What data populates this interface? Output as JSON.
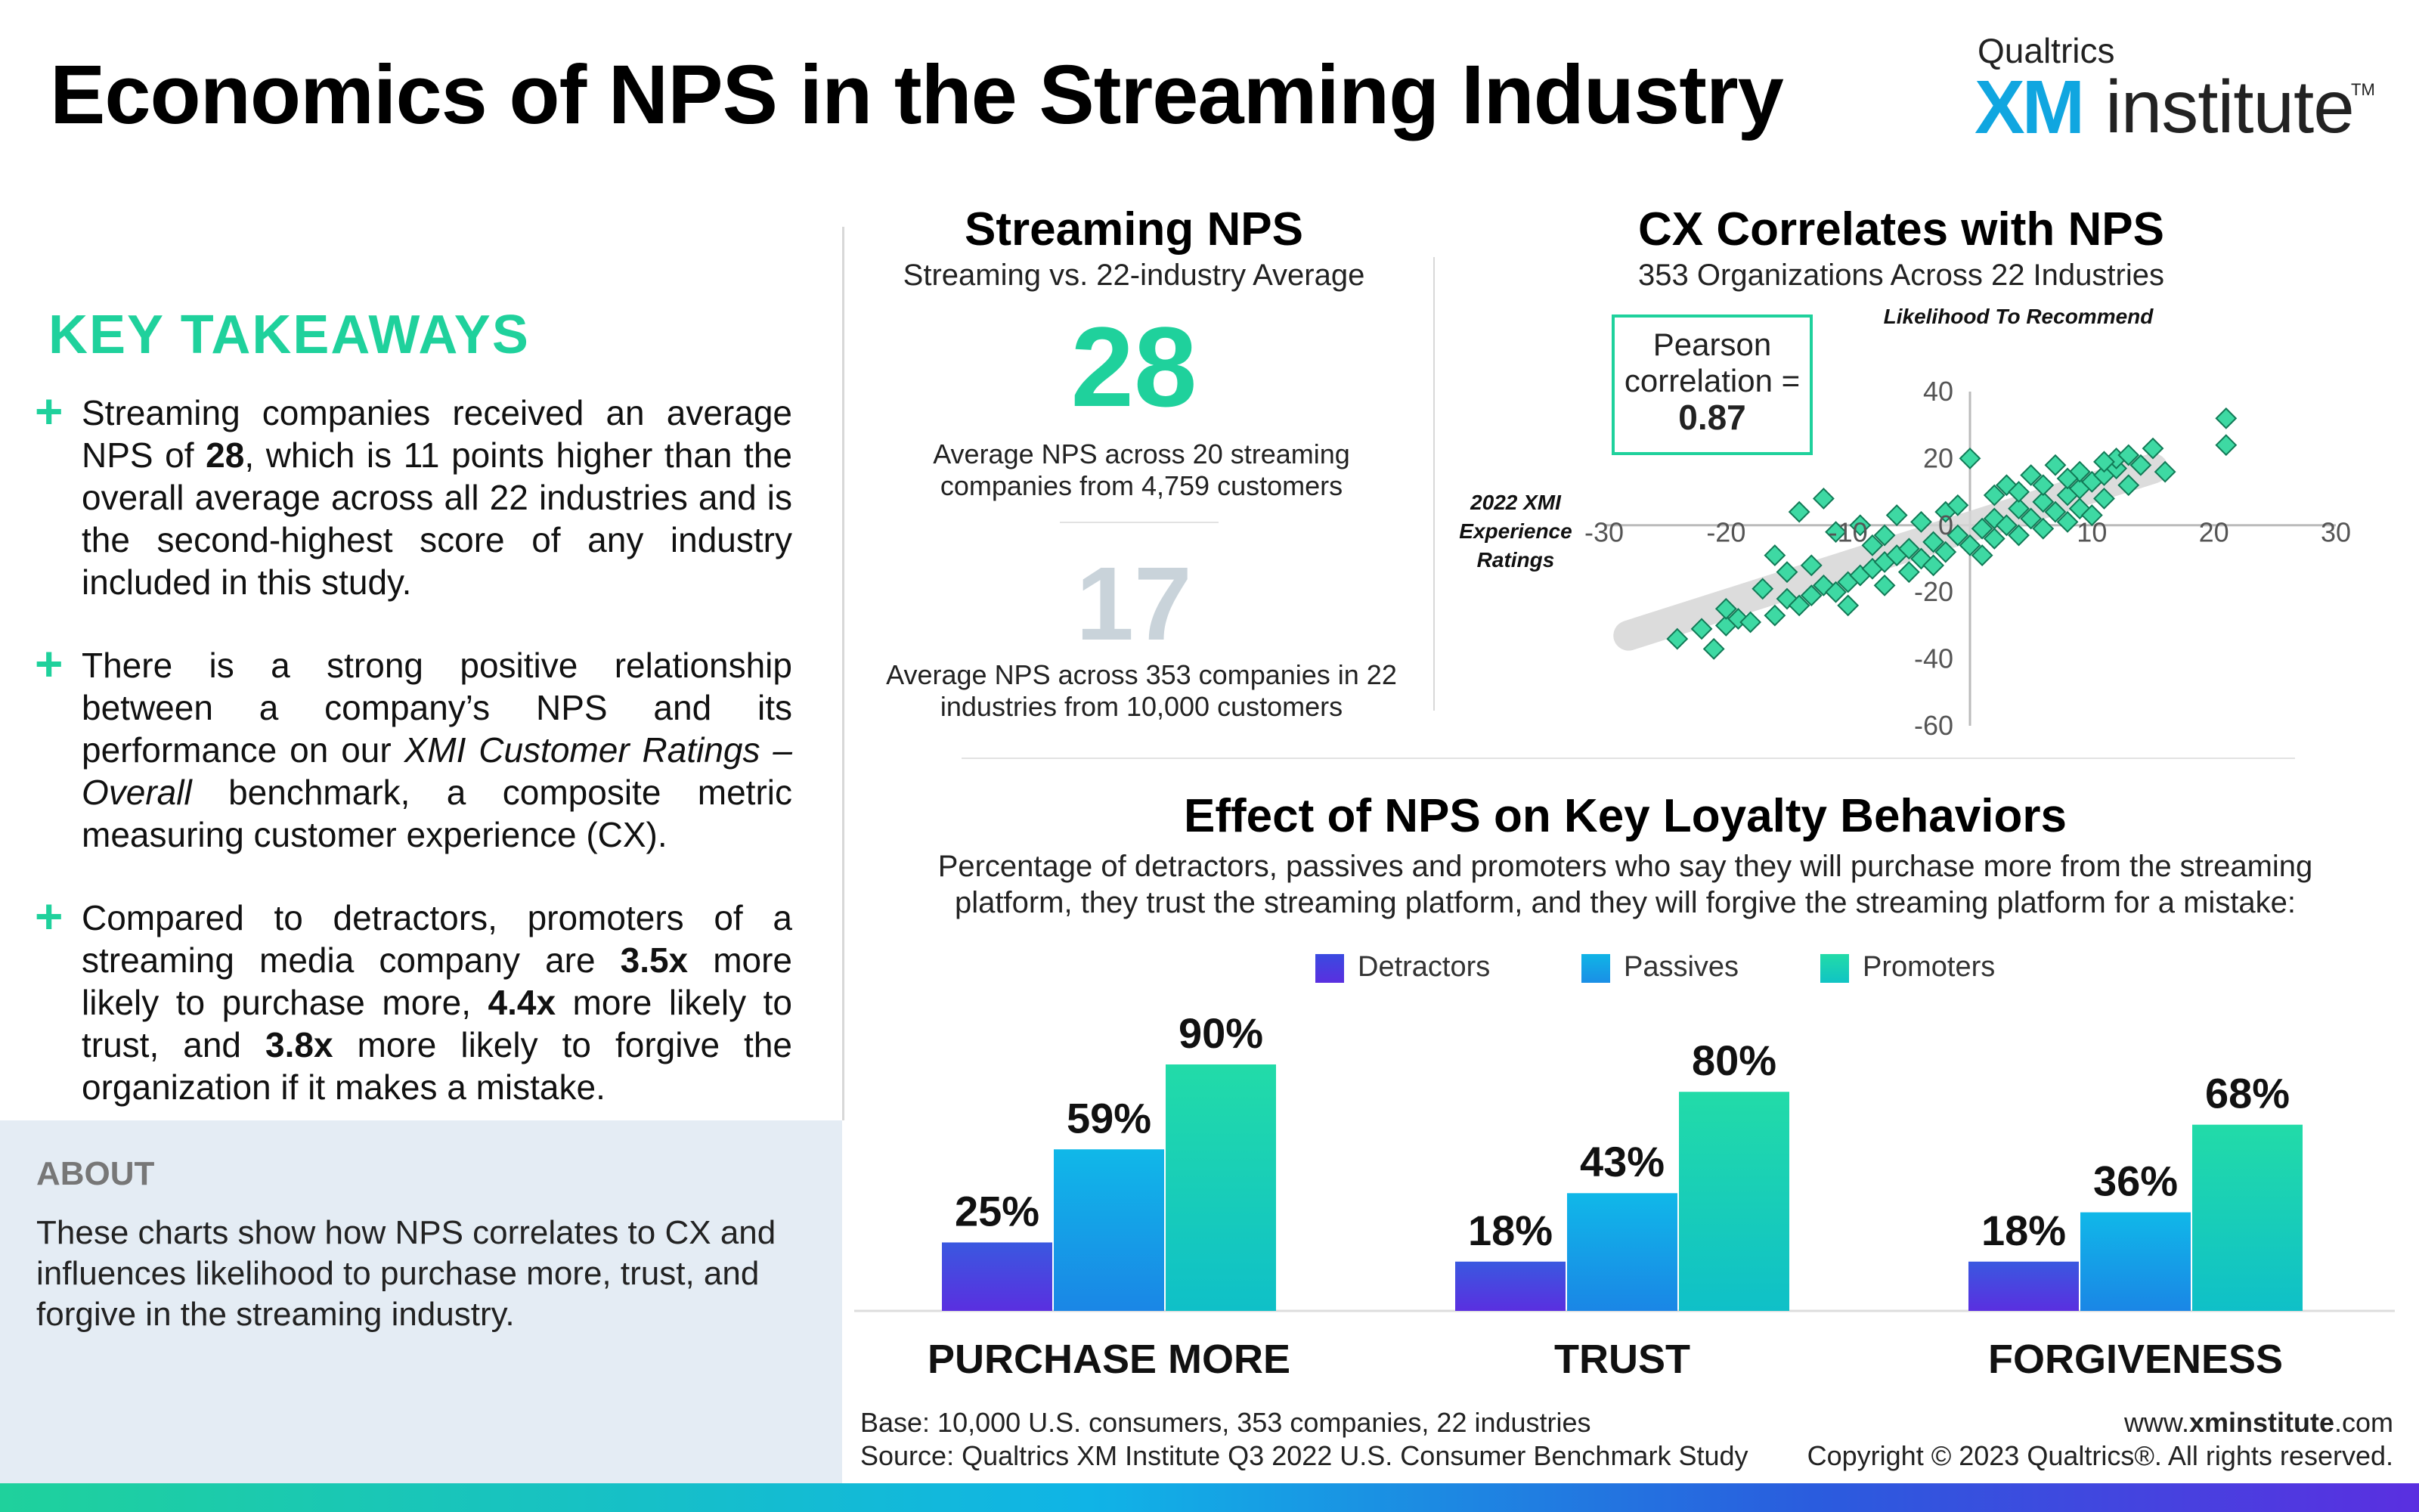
{
  "title": "Economics of NPS in the Streaming Industry",
  "brand": {
    "top": "Qualtrics",
    "xm": "XM",
    "institute": "institute",
    "tm": "TM"
  },
  "takeaways": {
    "heading": "KEY TAKEAWAYS",
    "t1": {
      "a": "Streaming companies received an average NPS of ",
      "b": "28",
      "c": ", which is 11 points higher than the overall average across all 22 industries and is the second-highest score of any industry included in this study."
    },
    "t2": {
      "a": "There is a strong positive relationship between a company’s NPS and its performance on our ",
      "b": "XMI Customer Ratings – Overall",
      "c": " benchmark, a composite metric measuring customer experience (CX)."
    },
    "t3": {
      "a": "Compared to detractors, promoters of a streaming media company are ",
      "b": "3.5x",
      "c": " more likely to purchase more, ",
      "d": "4.4x",
      "e": " more likely to trust, and ",
      "f": "3.8x",
      "g": " more likely to forgive the organization if it makes a mistake."
    }
  },
  "about": {
    "heading": "ABOUT",
    "text": "These charts show how NPS correlates to CX and influences likelihood to purchase more, trust, and forgive in the streaming industry."
  },
  "colors": {
    "accent": "#1fd19c",
    "detractors": "#4a32df",
    "passives": "#10b4e6",
    "promoters": "#22dba8"
  },
  "chart_data": [
    {
      "type": "table",
      "title": "Streaming NPS",
      "subtitle": "Streaming vs. 22-industry Average",
      "streaming_nps": "28",
      "streaming_note": "Average NPS across 20 streaming companies from 4,759 customers",
      "industry_nps": "17",
      "industry_note": "Average NPS across 353 companies in 22 industries from 10,000 customers"
    },
    {
      "type": "scatter",
      "title": "CX Correlates with NPS",
      "subtitle": "353 Organizations Across 22 Industries",
      "xlabel": "2022 XMI Experience Ratings",
      "ylabel": "Likelihood To Recommend",
      "correlation_label": "Pearson correlation =",
      "correlation": "0.87",
      "xlim": [
        -30,
        30
      ],
      "ylim": [
        -60,
        40
      ],
      "xticks": [
        "-30",
        "-20",
        "-10",
        "10",
        "20",
        "30"
      ],
      "yticks": [
        "40",
        "20",
        "0",
        "-20",
        "-40",
        "-60"
      ],
      "trend": {
        "x": [
          -28,
          15
        ],
        "y": [
          -33,
          17
        ]
      },
      "points": [
        [
          -24,
          -34
        ],
        [
          -22,
          -31
        ],
        [
          -21,
          -37
        ],
        [
          -20,
          -30
        ],
        [
          -19,
          -28
        ],
        [
          -20,
          -25
        ],
        [
          -18,
          -29
        ],
        [
          -16,
          -27
        ],
        [
          -15,
          -22
        ],
        [
          -14,
          -24
        ],
        [
          -13,
          -21
        ],
        [
          -12,
          -18
        ],
        [
          -11,
          -20
        ],
        [
          -10,
          -24
        ],
        [
          -10,
          -17
        ],
        [
          -9,
          -15
        ],
        [
          -8,
          -13
        ],
        [
          -7,
          -18
        ],
        [
          -7,
          -11
        ],
        [
          -6,
          -9
        ],
        [
          -5,
          -14
        ],
        [
          -5,
          -7
        ],
        [
          -4,
          -10
        ],
        [
          -3,
          -5
        ],
        [
          -3,
          -12
        ],
        [
          -2,
          -8
        ],
        [
          -1,
          -3
        ],
        [
          0,
          -6
        ],
        [
          1,
          -1
        ],
        [
          1,
          -9
        ],
        [
          2,
          2
        ],
        [
          2,
          -4
        ],
        [
          3,
          0
        ],
        [
          4,
          5
        ],
        [
          4,
          -3
        ],
        [
          5,
          2
        ],
        [
          6,
          7
        ],
        [
          6,
          -1
        ],
        [
          7,
          4
        ],
        [
          8,
          9
        ],
        [
          8,
          1
        ],
        [
          9,
          11
        ],
        [
          9,
          5
        ],
        [
          10,
          13
        ],
        [
          10,
          3
        ],
        [
          11,
          15
        ],
        [
          11,
          8
        ],
        [
          12,
          17
        ],
        [
          12,
          20
        ],
        [
          13,
          12
        ],
        [
          13,
          21
        ],
        [
          14,
          18
        ],
        [
          15,
          23
        ],
        [
          16,
          16
        ],
        [
          -12,
          8
        ],
        [
          -14,
          4
        ],
        [
          0,
          20
        ],
        [
          21,
          32
        ],
        [
          21,
          24
        ],
        [
          -16,
          -9
        ],
        [
          -11,
          -2
        ],
        [
          -6,
          3
        ],
        [
          -9,
          0
        ],
        [
          -4,
          1
        ],
        [
          3,
          12
        ],
        [
          5,
          15
        ],
        [
          7,
          18
        ],
        [
          -2,
          4
        ],
        [
          -13,
          -12
        ],
        [
          -8,
          -6
        ],
        [
          6,
          12
        ],
        [
          9,
          16
        ],
        [
          -17,
          -19
        ],
        [
          -15,
          -14
        ],
        [
          -7,
          -3
        ],
        [
          11,
          19
        ],
        [
          4,
          10
        ],
        [
          -1,
          6
        ],
        [
          8,
          14
        ],
        [
          2,
          9
        ]
      ]
    },
    {
      "type": "bar",
      "title": "Effect of NPS on Key Loyalty Behaviors",
      "subtitle": "Percentage of detractors, passives and promoters who say they will purchase more from the streaming platform, they trust the streaming platform, and they will forgive the streaming platform for a mistake:",
      "categories": [
        "PURCHASE MORE",
        "TRUST",
        "FORGIVENESS"
      ],
      "ylim": [
        0,
        100
      ],
      "legend_position": "top-center",
      "series": [
        {
          "name": "Detractors",
          "values": [
            25,
            18,
            18
          ]
        },
        {
          "name": "Passives",
          "values": [
            59,
            43,
            36
          ]
        },
        {
          "name": "Promoters",
          "values": [
            90,
            80,
            68
          ]
        }
      ]
    }
  ],
  "footer": {
    "base": "Base: 10,000 U.S. consumers, 353 companies, 22 industries",
    "source": "Source: Qualtrics XM Institute Q3 2022 U.S. Consumer Benchmark Study",
    "url_a": "www.",
    "url_b": "xminstitute",
    "url_c": ".com",
    "copyright": "Copyright © 2023 Qualtrics®. All rights reserved."
  }
}
